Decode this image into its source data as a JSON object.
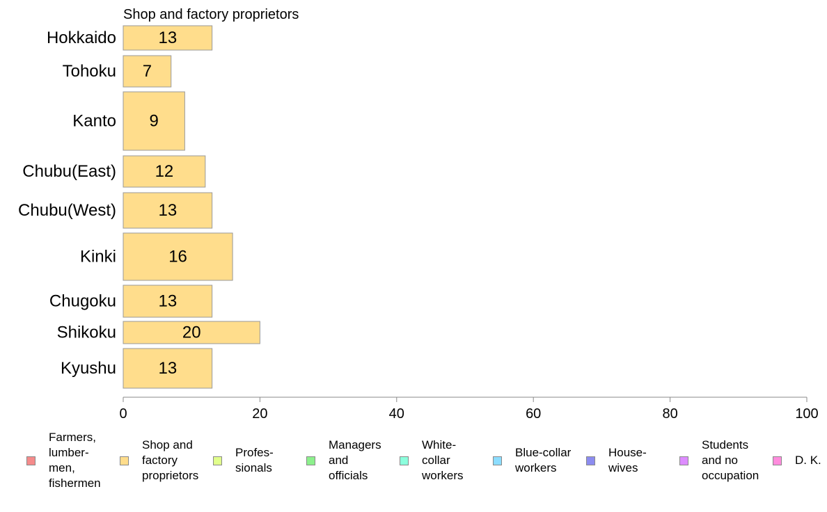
{
  "chart_data": {
    "type": "bar",
    "orientation": "horizontal",
    "title": "Shop and factory proprietors",
    "categories": [
      "Hokkaido",
      "Tohoku",
      "Kanto",
      "Chubu(East)",
      "Chubu(West)",
      "Kinki",
      "Chugoku",
      "Shikoku",
      "Kyushu"
    ],
    "series": [
      {
        "name": "Shop and factory proprietors",
        "values": [
          13,
          7,
          9,
          12,
          13,
          16,
          13,
          20,
          13
        ],
        "color": "#FFDD8C"
      }
    ],
    "data_labels": [
      "13",
      "7",
      "9",
      "12",
      "13",
      "16",
      "13",
      "20",
      "13"
    ],
    "xlim": [
      0,
      100
    ],
    "x_ticks": [
      "0",
      "20",
      "40",
      "60",
      "80",
      "100"
    ],
    "grid": false,
    "legend_position": "bottom",
    "legend": [
      {
        "label": "Farmers,\nlumber-\nmen,\nfishermen",
        "color": "#F58B8B"
      },
      {
        "label": "Shop and\nfactory\nproprietors",
        "color": "#FFDD8C"
      },
      {
        "label": "Profes-\nsionals",
        "color": "#E1FF8C"
      },
      {
        "label": "Managers\nand\nofficials",
        "color": "#8CF08C"
      },
      {
        "label": "White-\ncollar\nworkers",
        "color": "#8CFFDD"
      },
      {
        "label": "Blue-collar\nworkers",
        "color": "#8CDDFF"
      },
      {
        "label": "House-\nwives",
        "color": "#8C8CF0"
      },
      {
        "label": "Students\nand no\noccupation",
        "color": "#DD8CFF"
      },
      {
        "label": "D. K.",
        "color": "#FF8CDD"
      }
    ]
  }
}
